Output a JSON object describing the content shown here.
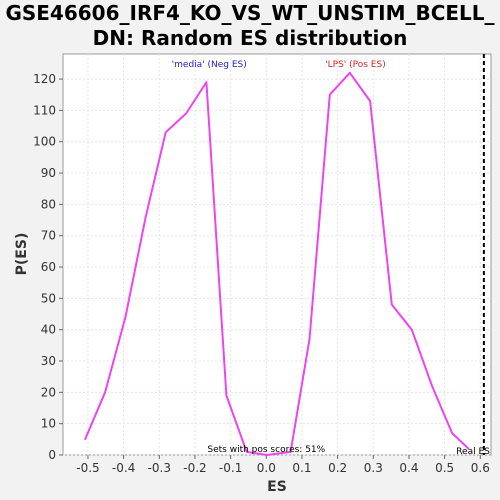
{
  "chart_data": {
    "type": "line",
    "title_lines": [
      "GSE46606_IRF4_KO_VS_WT_UNSTIM_BCELL_",
      "DN: Random ES distribution"
    ],
    "xlabel": "ES",
    "ylabel": "P(ES)",
    "xlim": [
      -0.57,
      0.63
    ],
    "ylim": [
      0,
      128
    ],
    "x_ticks": [
      "-0.5",
      "-0.4",
      "-0.3",
      "-0.2",
      "-0.1",
      "0.0",
      "0.1",
      "0.2",
      "0.3",
      "0.4",
      "0.5",
      "0.6"
    ],
    "x_tick_values": [
      -0.5,
      -0.4,
      -0.3,
      -0.2,
      -0.1,
      0.0,
      0.1,
      0.2,
      0.3,
      0.4,
      0.5,
      0.6
    ],
    "y_ticks": [
      "0",
      "10",
      "20",
      "30",
      "40",
      "50",
      "60",
      "70",
      "80",
      "90",
      "100",
      "110",
      "120"
    ],
    "y_tick_values": [
      0,
      10,
      20,
      30,
      40,
      50,
      60,
      70,
      80,
      90,
      100,
      110,
      120
    ],
    "grid": true,
    "series": [
      {
        "color": "#ee44ee",
        "x": [
          -0.508,
          -0.452,
          -0.395,
          -0.338,
          -0.282,
          -0.225,
          -0.168,
          -0.112,
          -0.055,
          0.002,
          0.068,
          0.121,
          0.178,
          0.234,
          0.291,
          0.352,
          0.408,
          0.465,
          0.521,
          0.567
        ],
        "y": [
          5,
          20,
          44,
          76,
          103,
          109,
          119,
          19,
          1,
          0,
          1,
          37,
          115,
          122,
          113,
          48,
          40,
          22,
          7,
          2
        ]
      }
    ],
    "annotations": {
      "neg_label": "'media' (Neg ES)",
      "pos_label": "'LPS' (Pos ES)",
      "sets_text": "Sets with pos scores: 51%",
      "real_es_label": "Real ES",
      "real_es_value": 0.61
    },
    "colors": {
      "neg": "#2222cc",
      "pos": "#dd2222",
      "line": "#ee44ee"
    }
  }
}
